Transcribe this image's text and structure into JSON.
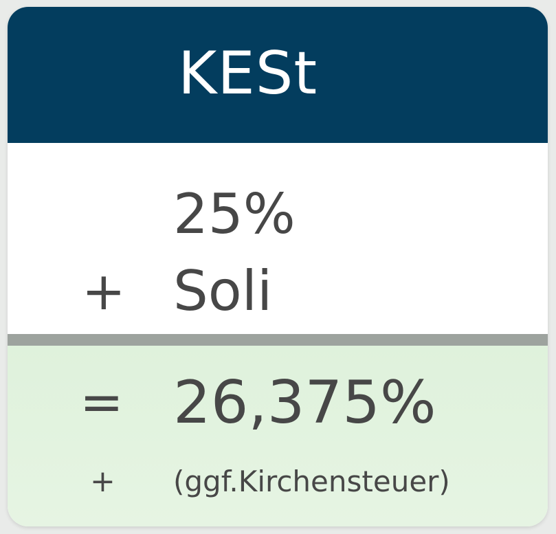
{
  "header": {
    "title": "KESt"
  },
  "rows": {
    "base_rate": "25%",
    "soli_operator": "+",
    "soli_label": "Soli",
    "equals_operator": "=",
    "total_rate": "26,375%",
    "church_operator": "+",
    "church_note": "(ggf.Kirchensteuer)"
  },
  "colors": {
    "header_bg": "#033d5e",
    "divider": "#9da39e",
    "result_bg": "#dff2dc",
    "text": "#474747"
  }
}
